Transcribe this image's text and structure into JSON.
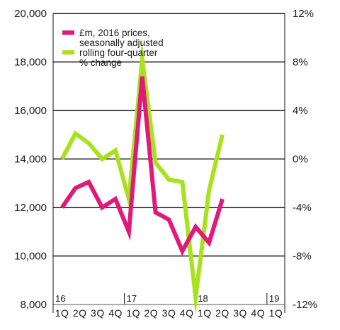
{
  "chart_data": {
    "type": "line",
    "categories": [
      "1Q",
      "2Q",
      "3Q",
      "4Q",
      "1Q",
      "2Q",
      "3Q",
      "4Q",
      "1Q",
      "2Q",
      "3Q",
      "4Q",
      "1Q"
    ],
    "year_markers": [
      {
        "label": "16",
        "index": 0
      },
      {
        "label": "17",
        "index": 4
      },
      {
        "label": "18",
        "index": 8
      },
      {
        "label": "19",
        "index": 12
      }
    ],
    "y_left": {
      "ticks": [
        "8,000",
        "10,000",
        "12,000",
        "14,000",
        "16,000",
        "18,000",
        "20,000"
      ],
      "ylim": [
        8000,
        20000
      ]
    },
    "y_right": {
      "ticks": [
        "-12%",
        "-8%",
        "-4%",
        "0%",
        "4%",
        "8%",
        "12%"
      ],
      "ylim": [
        -12,
        12
      ]
    },
    "x_points": [
      0,
      0.75,
      1.5,
      2.25,
      3,
      3.75,
      4.5,
      5.25,
      6,
      6.75,
      7.5,
      8.25,
      9,
      9.75,
      10.5,
      11.25,
      12
    ],
    "series": [
      {
        "name": "£m, 2016 prices, seasonally adjusted",
        "axis": "left",
        "color": "#e0197a",
        "values": [
          12000,
          12800,
          13050,
          12000,
          12350,
          11000,
          17400,
          11800,
          11500,
          10200,
          11200,
          10550,
          12350
        ]
      },
      {
        "name": "rolling four-quarter % change",
        "name_lines": [
          "rolling four-quarter",
          "% change"
        ],
        "axis": "right",
        "color": "#a8e21c",
        "values": [
          0,
          2.1,
          1.3,
          0,
          0.7,
          -3.3,
          8.2,
          -0.3,
          -1.7,
          -1.9,
          -11.4,
          -2.6,
          2
        ]
      }
    ],
    "legend": {
      "position": "top-left",
      "entries": [
        {
          "lines": [
            "£m, 2016 prices,",
            "seasonally adjusted"
          ],
          "color": "#e0197a"
        },
        {
          "lines": [
            "rolling four-quarter",
            "% change"
          ],
          "color": "#a8e21c"
        }
      ]
    },
    "grid": true
  }
}
